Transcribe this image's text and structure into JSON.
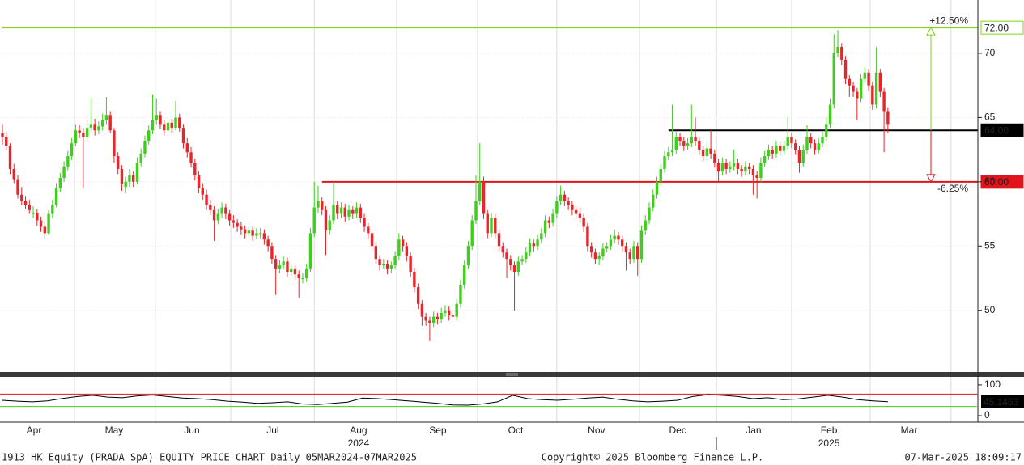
{
  "chart_data": {
    "type": "candlestick",
    "footer_left": "1913 HK Equity (PRADA SpA) EQUITY PRICE CHART  Daily 05MAR2024-07MAR2025",
    "footer_center": "Copyright© 2025 Bloomberg Finance L.P.",
    "footer_right": "07-Mar-2025 18:09:17",
    "up_color": "#3ecf1c",
    "down_color": "#e8252b",
    "xlim": [
      0,
      254
    ],
    "xgrid": [
      18.7,
      39.7,
      59.3,
      81.0,
      102.4,
      123.4,
      144.0,
      165.5,
      185.5,
      205.0,
      225.4,
      246.4
    ],
    "xticks": [
      {
        "value": 8.2,
        "label": "Apr"
      },
      {
        "value": 29.0,
        "label": "May"
      },
      {
        "value": 49.2,
        "label": "Jun"
      },
      {
        "value": 70.2,
        "label": "Jul"
      },
      {
        "value": 92.5,
        "label": "Aug"
      },
      {
        "value": 113.1,
        "label": "Sep"
      },
      {
        "value": 133.3,
        "label": "Oct"
      },
      {
        "value": 154.3,
        "label": "Nov"
      },
      {
        "value": 175.4,
        "label": "Dec"
      },
      {
        "value": 195.1,
        "label": "Jan"
      },
      {
        "value": 214.7,
        "label": "Feb"
      },
      {
        "value": 235.5,
        "label": "Mar"
      }
    ],
    "years": [
      {
        "value": 92.5,
        "label": "2024"
      },
      {
        "value": 214.7,
        "label": "2025"
      }
    ],
    "ylim": [
      45.2,
      74.15
    ],
    "yticks": [
      50,
      55,
      60,
      65,
      70
    ],
    "levels": [
      {
        "value": 72,
        "label": "72.00",
        "color": "#86d11a",
        "start": 0
      },
      {
        "value": 64,
        "label": "64.00",
        "color": "#000000",
        "start": 173
      },
      {
        "value": 60,
        "label": "60.00",
        "color": "#e0141c",
        "start": 83
      }
    ],
    "annotations": [
      {
        "value": 12.5,
        "label": "+12.50%",
        "target": 72,
        "color": "#86d11a"
      },
      {
        "value": -6.25,
        "label": "-6.25%",
        "target": 60,
        "color": "#e0141c"
      }
    ],
    "candles": [
      [
        63.8,
        64.5,
        62.9,
        63.5
      ],
      [
        63.5,
        63.9,
        62.5,
        62.8
      ],
      [
        62.8,
        63.0,
        60.6,
        61.0
      ],
      [
        61.0,
        61.4,
        59.9,
        60.2
      ],
      [
        60.2,
        60.5,
        58.7,
        59.0
      ],
      [
        59.0,
        59.6,
        58.2,
        58.5
      ],
      [
        58.5,
        58.9,
        57.9,
        58.2
      ],
      [
        58.2,
        58.6,
        57.5,
        57.8
      ],
      [
        57.5,
        58.1,
        57.2,
        57.6
      ],
      [
        57.6,
        57.9,
        56.6,
        57.0
      ],
      [
        57.0,
        57.3,
        56.1,
        56.5
      ],
      [
        56.5,
        57.0,
        55.6,
        56.0
      ],
      [
        56.0,
        57.8,
        55.9,
        57.5
      ],
      [
        57.5,
        58.6,
        57.2,
        58.2
      ],
      [
        58.2,
        59.9,
        58.0,
        59.5
      ],
      [
        59.5,
        60.7,
        59.2,
        60.3
      ],
      [
        60.3,
        61.6,
        60.0,
        61.2
      ],
      [
        61.2,
        62.4,
        60.9,
        62.0
      ],
      [
        62.0,
        63.4,
        61.7,
        63.0
      ],
      [
        63.0,
        64.5,
        62.8,
        64.0
      ],
      [
        64.0,
        64.4,
        63.4,
        63.8
      ],
      [
        63.8,
        64.2,
        59.5,
        63.5
      ],
      [
        63.5,
        64.8,
        63.2,
        64.2
      ],
      [
        64.2,
        66.5,
        63.9,
        64.5
      ],
      [
        64.5,
        64.9,
        63.6,
        64.0
      ],
      [
        64.0,
        64.7,
        63.7,
        64.3
      ],
      [
        64.3,
        65.3,
        64.0,
        64.8
      ],
      [
        64.8,
        66.6,
        64.5,
        65.2
      ],
      [
        65.2,
        65.5,
        63.8,
        64.0
      ],
      [
        64.0,
        64.2,
        61.5,
        62.0
      ],
      [
        62.0,
        62.3,
        60.6,
        61.0
      ],
      [
        61.0,
        61.3,
        59.3,
        59.8
      ],
      [
        59.6,
        60.4,
        59.1,
        60.0
      ],
      [
        60.0,
        61.0,
        59.6,
        60.5
      ],
      [
        60.5,
        60.8,
        59.6,
        60.0
      ],
      [
        60.0,
        61.9,
        59.8,
        61.5
      ],
      [
        61.5,
        62.6,
        61.2,
        62.2
      ],
      [
        62.2,
        63.6,
        61.9,
        63.2
      ],
      [
        63.2,
        64.4,
        62.9,
        64.0
      ],
      [
        64.0,
        66.8,
        63.7,
        64.8
      ],
      [
        64.8,
        66.5,
        64.5,
        65.2
      ],
      [
        65.2,
        65.5,
        64.1,
        64.5
      ],
      [
        64.5,
        64.8,
        63.6,
        64.0
      ],
      [
        64.0,
        65.0,
        63.7,
        64.6
      ],
      [
        64.6,
        64.9,
        63.8,
        64.2
      ],
      [
        64.2,
        66.3,
        64.0,
        65.0
      ],
      [
        65.0,
        65.3,
        63.9,
        64.2
      ],
      [
        64.2,
        64.5,
        62.6,
        63.0
      ],
      [
        63.0,
        63.4,
        61.9,
        62.3
      ],
      [
        62.3,
        62.7,
        61.1,
        61.5
      ],
      [
        61.5,
        61.8,
        60.1,
        60.5
      ],
      [
        60.5,
        60.8,
        59.1,
        59.5
      ],
      [
        59.5,
        59.9,
        58.6,
        59.0
      ],
      [
        59.0,
        59.4,
        57.8,
        58.2
      ],
      [
        58.2,
        58.6,
        57.4,
        57.8
      ],
      [
        57.8,
        58.1,
        55.4,
        57.0
      ],
      [
        57.0,
        57.9,
        56.7,
        57.5
      ],
      [
        57.5,
        58.4,
        57.2,
        58.0
      ],
      [
        58.0,
        58.3,
        57.1,
        57.5
      ],
      [
        57.5,
        57.8,
        56.6,
        57.0
      ],
      [
        57.0,
        57.4,
        56.4,
        56.8
      ],
      [
        56.8,
        57.1,
        56.1,
        56.5
      ],
      [
        56.5,
        56.9,
        55.9,
        56.3
      ],
      [
        56.3,
        56.6,
        55.6,
        56.0
      ],
      [
        56.0,
        56.6,
        55.7,
        56.2
      ],
      [
        56.2,
        56.5,
        55.4,
        55.8
      ],
      [
        55.8,
        56.4,
        55.5,
        56.0
      ],
      [
        56.0,
        56.4,
        55.6,
        56.0
      ],
      [
        56.0,
        56.3,
        55.1,
        55.5
      ],
      [
        55.5,
        55.8,
        54.6,
        55.0
      ],
      [
        55.0,
        55.3,
        53.6,
        54.0
      ],
      [
        54.0,
        54.3,
        51.2,
        53.2
      ],
      [
        53.2,
        53.9,
        52.9,
        53.5
      ],
      [
        53.5,
        54.2,
        53.2,
        53.8
      ],
      [
        53.8,
        54.1,
        52.6,
        53.0
      ],
      [
        53.0,
        53.6,
        52.7,
        53.2
      ],
      [
        53.2,
        53.5,
        52.4,
        52.8
      ],
      [
        52.8,
        53.1,
        51.0,
        52.5
      ],
      [
        52.5,
        52.9,
        52.1,
        52.5
      ],
      [
        52.5,
        53.6,
        52.2,
        53.2
      ],
      [
        53.2,
        56.4,
        53.0,
        56.0
      ],
      [
        56.0,
        60.0,
        55.7,
        58.0
      ],
      [
        58.0,
        59.7,
        57.6,
        58.5
      ],
      [
        58.5,
        58.8,
        57.4,
        57.8
      ],
      [
        57.8,
        58.1,
        54.3,
        56.2
      ],
      [
        56.2,
        57.4,
        55.9,
        57.0
      ],
      [
        57.0,
        60.0,
        56.7,
        58.2
      ],
      [
        58.2,
        58.5,
        57.1,
        57.5
      ],
      [
        57.5,
        58.4,
        57.2,
        58.0
      ],
      [
        58.0,
        58.3,
        56.9,
        57.3
      ],
      [
        57.3,
        58.2,
        57.0,
        57.8
      ],
      [
        57.8,
        58.1,
        57.1,
        57.5
      ],
      [
        57.5,
        58.4,
        57.2,
        58.0
      ],
      [
        58.0,
        58.3,
        56.8,
        57.2
      ],
      [
        57.2,
        57.5,
        56.1,
        56.5
      ],
      [
        56.5,
        56.8,
        55.6,
        56.0
      ],
      [
        56.0,
        56.3,
        54.6,
        55.0
      ],
      [
        55.0,
        55.3,
        53.6,
        54.0
      ],
      [
        54.0,
        54.3,
        53.1,
        53.5
      ],
      [
        53.5,
        54.0,
        53.2,
        53.6
      ],
      [
        53.6,
        53.9,
        52.8,
        53.2
      ],
      [
        53.2,
        53.8,
        52.9,
        53.5
      ],
      [
        53.5,
        54.6,
        53.2,
        54.2
      ],
      [
        54.2,
        56.0,
        53.9,
        55.5
      ],
      [
        55.5,
        55.8,
        54.6,
        55.0
      ],
      [
        55.0,
        55.3,
        53.8,
        54.2
      ],
      [
        54.2,
        54.5,
        52.6,
        53.0
      ],
      [
        53.0,
        53.3,
        51.4,
        51.8
      ],
      [
        51.8,
        52.1,
        50.1,
        50.5
      ],
      [
        50.5,
        50.8,
        48.8,
        49.5
      ],
      [
        49.5,
        49.8,
        48.8,
        49.2
      ],
      [
        49.2,
        49.5,
        47.6,
        49.0
      ],
      [
        49.0,
        49.9,
        48.7,
        49.5
      ],
      [
        49.5,
        49.8,
        48.9,
        49.3
      ],
      [
        49.3,
        50.2,
        49.0,
        49.8
      ],
      [
        49.8,
        50.4,
        49.5,
        50.0
      ],
      [
        50.0,
        50.3,
        49.2,
        49.6
      ],
      [
        49.6,
        49.9,
        49.1,
        49.5
      ],
      [
        49.5,
        50.9,
        49.2,
        50.5
      ],
      [
        50.5,
        52.4,
        50.2,
        52.0
      ],
      [
        52.0,
        53.9,
        51.7,
        53.5
      ],
      [
        53.5,
        55.4,
        53.2,
        55.0
      ],
      [
        55.0,
        57.4,
        54.7,
        57.0
      ],
      [
        57.0,
        60.5,
        56.7,
        58.5
      ],
      [
        58.5,
        63.0,
        58.2,
        60.0
      ],
      [
        60.0,
        60.4,
        57.1,
        57.5
      ],
      [
        57.5,
        57.8,
        55.6,
        56.0
      ],
      [
        56.0,
        57.6,
        55.7,
        57.2
      ],
      [
        57.2,
        57.5,
        55.6,
        56.0
      ],
      [
        56.0,
        56.3,
        54.6,
        55.0
      ],
      [
        55.0,
        55.3,
        54.1,
        54.5
      ],
      [
        54.5,
        54.8,
        52.5,
        54.0
      ],
      [
        54.0,
        54.3,
        53.1,
        53.5
      ],
      [
        53.5,
        53.8,
        50.0,
        53.0
      ],
      [
        53.0,
        54.2,
        52.7,
        53.8
      ],
      [
        53.8,
        54.3,
        53.5,
        54.0
      ],
      [
        54.0,
        54.9,
        53.7,
        54.5
      ],
      [
        54.5,
        55.6,
        54.2,
        55.2
      ],
      [
        55.2,
        55.5,
        54.6,
        55.0
      ],
      [
        55.0,
        55.9,
        54.7,
        55.5
      ],
      [
        55.5,
        56.4,
        55.2,
        56.0
      ],
      [
        56.0,
        57.4,
        55.7,
        57.0
      ],
      [
        57.0,
        57.3,
        56.4,
        56.8
      ],
      [
        56.8,
        57.9,
        56.5,
        57.5
      ],
      [
        57.5,
        58.9,
        57.2,
        58.5
      ],
      [
        58.5,
        59.7,
        58.2,
        59.0
      ],
      [
        59.0,
        59.3,
        58.1,
        58.5
      ],
      [
        58.5,
        58.8,
        57.8,
        58.2
      ],
      [
        58.2,
        58.5,
        57.4,
        57.8
      ],
      [
        57.8,
        58.1,
        57.1,
        57.5
      ],
      [
        57.5,
        58.0,
        56.8,
        57.2
      ],
      [
        57.2,
        57.5,
        56.1,
        56.5
      ],
      [
        56.5,
        56.8,
        54.6,
        55.0
      ],
      [
        55.0,
        55.3,
        54.1,
        54.5
      ],
      [
        54.5,
        54.8,
        53.6,
        54.0
      ],
      [
        54.0,
        54.5,
        53.5,
        54.2
      ],
      [
        54.2,
        55.2,
        53.9,
        54.8
      ],
      [
        54.8,
        55.3,
        54.5,
        55.0
      ],
      [
        55.0,
        55.9,
        54.7,
        55.5
      ],
      [
        55.5,
        56.3,
        55.2,
        55.8
      ],
      [
        55.8,
        56.1,
        55.1,
        55.5
      ],
      [
        55.5,
        55.8,
        54.6,
        55.0
      ],
      [
        55.0,
        55.3,
        53.1,
        54.5
      ],
      [
        54.5,
        54.8,
        53.6,
        54.0
      ],
      [
        54.0,
        55.4,
        53.7,
        55.0
      ],
      [
        55.0,
        55.3,
        52.7,
        54.0
      ],
      [
        54.0,
        56.6,
        53.7,
        56.2
      ],
      [
        56.2,
        57.4,
        55.9,
        57.0
      ],
      [
        57.0,
        58.4,
        56.7,
        58.0
      ],
      [
        58.0,
        59.4,
        57.7,
        59.0
      ],
      [
        59.0,
        60.4,
        58.7,
        60.0
      ],
      [
        60.0,
        61.4,
        59.7,
        61.0
      ],
      [
        61.0,
        62.4,
        60.7,
        62.0
      ],
      [
        62.0,
        62.7,
        61.7,
        62.3
      ],
      [
        62.3,
        66.0,
        62.0,
        62.5
      ],
      [
        62.5,
        63.9,
        62.2,
        63.5
      ],
      [
        63.5,
        63.8,
        62.8,
        63.2
      ],
      [
        63.2,
        63.5,
        62.4,
        62.8
      ],
      [
        62.8,
        63.4,
        62.5,
        63.0
      ],
      [
        63.0,
        66.0,
        62.7,
        63.5
      ],
      [
        63.5,
        65.0,
        62.8,
        63.2
      ],
      [
        63.2,
        63.5,
        62.1,
        62.5
      ],
      [
        62.5,
        62.8,
        61.6,
        62.0
      ],
      [
        62.0,
        63.0,
        61.7,
        62.6
      ],
      [
        62.6,
        64.0,
        61.8,
        62.2
      ],
      [
        62.2,
        62.5,
        61.1,
        61.5
      ],
      [
        61.5,
        61.8,
        60.0,
        60.8
      ],
      [
        60.8,
        61.9,
        60.5,
        61.5
      ],
      [
        61.5,
        61.8,
        60.6,
        61.0
      ],
      [
        61.0,
        61.6,
        60.7,
        61.2
      ],
      [
        61.2,
        62.5,
        60.9,
        61.5
      ],
      [
        61.5,
        61.8,
        60.6,
        61.0
      ],
      [
        61.0,
        61.3,
        60.4,
        60.8
      ],
      [
        60.8,
        61.6,
        60.5,
        61.2
      ],
      [
        61.2,
        61.5,
        60.6,
        61.0
      ],
      [
        61.0,
        61.3,
        59.0,
        60.5
      ],
      [
        60.5,
        60.8,
        58.7,
        60.3
      ],
      [
        60.3,
        61.9,
        60.0,
        61.5
      ],
      [
        61.5,
        62.4,
        61.2,
        62.0
      ],
      [
        62.0,
        62.9,
        61.7,
        62.5
      ],
      [
        62.5,
        62.8,
        61.8,
        62.2
      ],
      [
        62.2,
        63.2,
        61.9,
        62.8
      ],
      [
        62.8,
        63.1,
        62.0,
        62.4
      ],
      [
        62.4,
        63.2,
        62.1,
        62.8
      ],
      [
        62.8,
        65.0,
        62.5,
        63.5
      ],
      [
        63.5,
        63.8,
        62.6,
        63.0
      ],
      [
        63.0,
        63.3,
        62.1,
        62.5
      ],
      [
        62.5,
        62.8,
        60.7,
        61.5
      ],
      [
        61.5,
        62.9,
        61.2,
        62.5
      ],
      [
        62.5,
        64.4,
        62.2,
        63.5
      ],
      [
        63.5,
        63.8,
        62.6,
        63.0
      ],
      [
        63.0,
        63.3,
        62.1,
        62.5
      ],
      [
        62.5,
        63.4,
        62.2,
        63.0
      ],
      [
        63.0,
        63.9,
        62.7,
        63.5
      ],
      [
        63.5,
        65.0,
        63.2,
        64.5
      ],
      [
        64.5,
        66.5,
        64.2,
        66.0
      ],
      [
        66.0,
        71.5,
        65.7,
        70.0
      ],
      [
        70.0,
        71.8,
        69.7,
        70.5
      ],
      [
        70.5,
        70.8,
        69.1,
        69.5
      ],
      [
        69.5,
        69.8,
        67.6,
        68.0
      ],
      [
        68.0,
        68.3,
        66.6,
        67.5
      ],
      [
        67.5,
        67.8,
        66.6,
        67.0
      ],
      [
        67.0,
        67.3,
        64.8,
        66.5
      ],
      [
        66.5,
        68.4,
        66.2,
        68.0
      ],
      [
        68.0,
        68.9,
        67.7,
        68.5
      ],
      [
        68.5,
        68.8,
        67.1,
        67.5
      ],
      [
        67.5,
        67.8,
        65.6,
        66.0
      ],
      [
        66.0,
        70.5,
        65.7,
        68.5
      ],
      [
        68.5,
        68.8,
        66.6,
        67.0
      ],
      [
        67.0,
        67.3,
        62.3,
        65.5
      ],
      [
        65.5,
        65.8,
        63.8,
        64.5
      ]
    ],
    "rsi": {
      "color": "#000000",
      "y2lim": [
        -21,
        126
      ],
      "y2ticks": [
        100,
        0
      ],
      "bands": [
        {
          "value": 70,
          "color": "#e0141c"
        },
        {
          "value": 30,
          "color": "#3ecf1c"
        }
      ],
      "values": [
        50,
        47,
        45,
        48,
        56,
        62,
        66,
        60,
        58,
        64,
        67,
        62,
        57,
        55,
        52,
        47,
        44,
        40,
        42,
        45,
        38,
        36,
        40,
        44,
        57,
        55,
        52,
        48,
        44,
        40,
        35,
        34,
        38,
        45,
        66,
        55,
        52,
        50,
        53,
        57,
        60,
        53,
        48,
        45,
        47,
        50,
        62,
        68,
        66,
        62,
        55,
        58,
        52,
        54,
        60,
        66,
        60,
        52,
        48,
        45.1463
      ]
    }
  }
}
